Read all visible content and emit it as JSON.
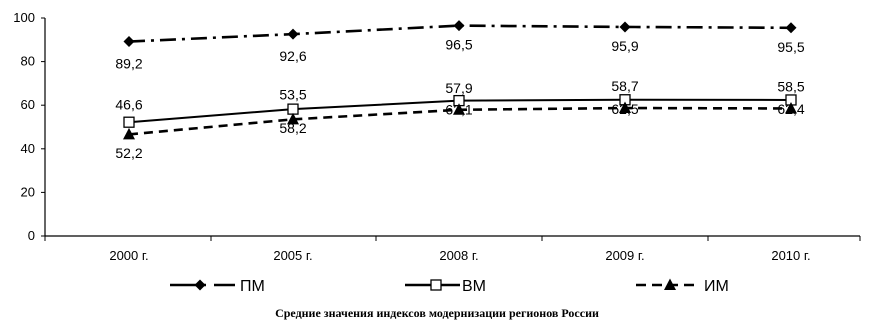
{
  "caption": "Средние значения индексов модернизации регионов России",
  "chart_data": {
    "type": "line",
    "categories": [
      "2000 г.",
      "2005 г.",
      "2008 г.",
      "2009 г.",
      "2010 г."
    ],
    "ylim": [
      0,
      100
    ],
    "yticks": [
      0,
      20,
      40,
      60,
      80,
      100
    ],
    "grid": false,
    "legend_position": "bottom",
    "series": [
      {
        "name": "ПМ",
        "marker": "diamond",
        "line_style": "dash-dot",
        "values": [
          89.2,
          92.6,
          96.5,
          95.9,
          95.5
        ],
        "labels": [
          "89,2",
          "92,6",
          "96,5",
          "95,9",
          "95,5"
        ],
        "label_offsets_y": [
          27,
          27,
          24,
          24,
          24
        ]
      },
      {
        "name": "ВМ",
        "marker": "square-open",
        "line_style": "solid",
        "values": [
          52.2,
          58.2,
          62.1,
          62.5,
          62.4
        ],
        "labels": [
          "52,2",
          "58,2",
          "62,1",
          "62,5",
          "62,4"
        ],
        "label_offsets_y": [
          36,
          24,
          14,
          14,
          14
        ]
      },
      {
        "name": "ИМ",
        "marker": "triangle",
        "line_style": "dashed",
        "values": [
          46.6,
          53.5,
          57.9,
          58.7,
          58.5
        ],
        "labels": [
          "46,6",
          "53,5",
          "57,9",
          "58,7",
          "58,5"
        ],
        "label_offsets_y": [
          -25,
          -20,
          -17,
          -17,
          -17
        ]
      }
    ]
  }
}
